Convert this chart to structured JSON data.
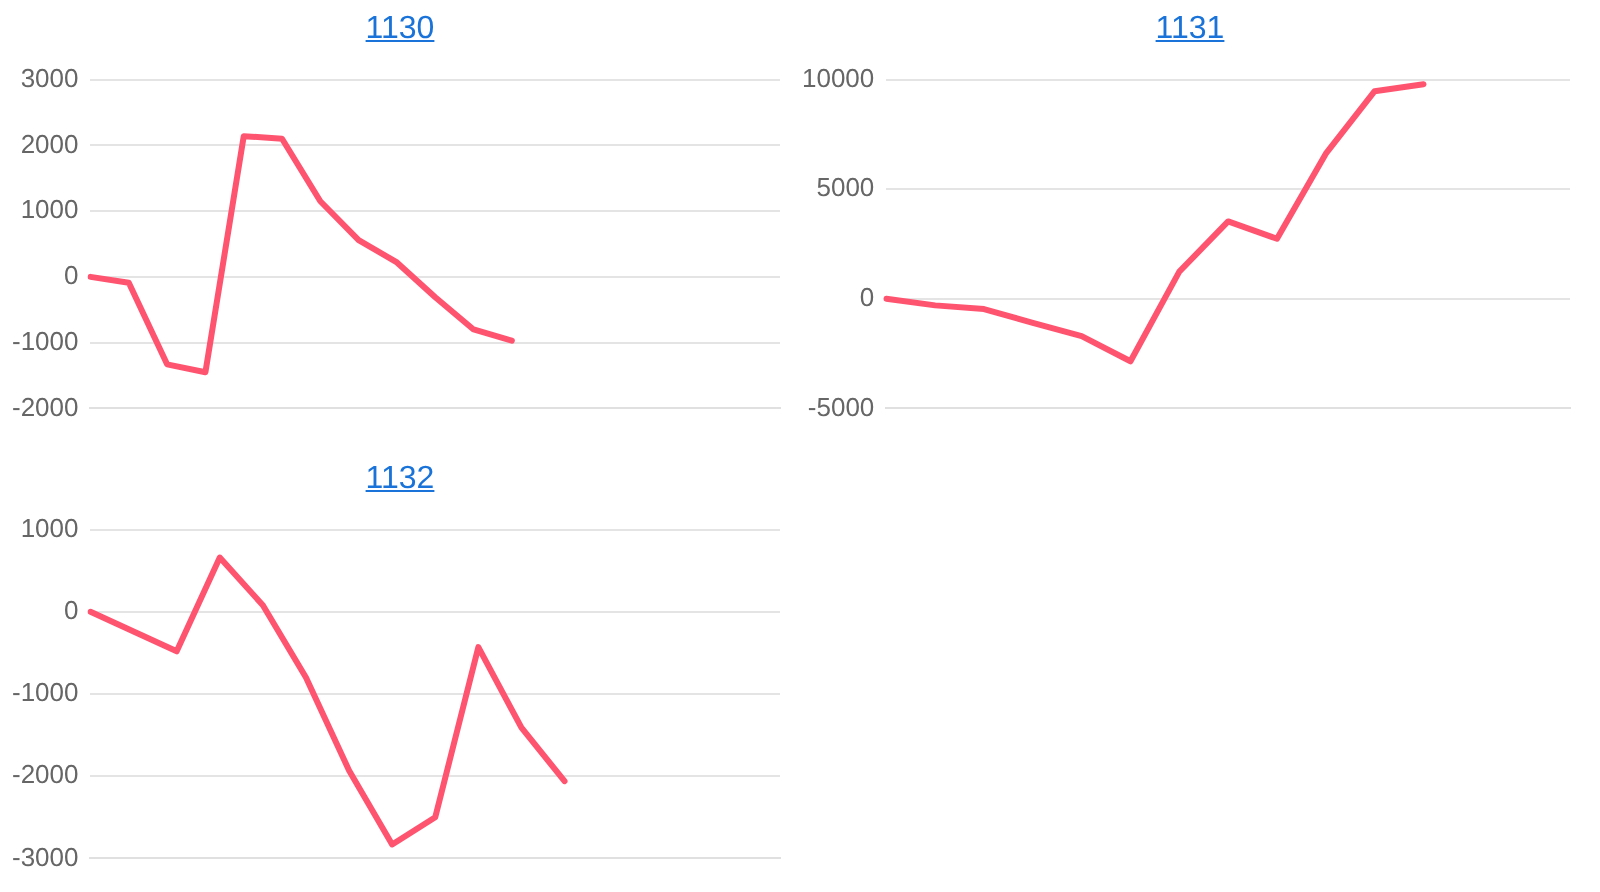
{
  "chart_data": [
    {
      "type": "line",
      "title": "1130",
      "categories": [
        null,
        null,
        null,
        null,
        null,
        null,
        null,
        null,
        null,
        null,
        null,
        null,
        null,
        null,
        null,
        null,
        null,
        null,
        null
      ],
      "series": [
        {
          "color": "#ff5470",
          "values": [
            0,
            -90,
            -1330,
            -1450,
            2140,
            2100,
            1150,
            560,
            220,
            -310,
            -800,
            -970,
            null,
            null,
            null,
            null,
            null,
            null,
            null
          ]
        }
      ],
      "ylim": [
        -2000,
        3000
      ],
      "yticks": [
        -2000,
        -1000,
        0,
        1000,
        2000,
        3000
      ],
      "grid": "y",
      "tick_labels": "y",
      "marker": "none",
      "line_style": "solid",
      "legend": false
    },
    {
      "type": "line",
      "title": "1131",
      "categories": [
        null,
        null,
        null,
        null,
        null,
        null,
        null,
        null,
        null,
        null,
        null,
        null,
        null,
        null,
        null
      ],
      "series": [
        {
          "color": "#ff5470",
          "values": [
            0,
            -300,
            -470,
            -1100,
            -1700,
            -2850,
            1240,
            3530,
            2740,
            6620,
            9470,
            9790,
            null,
            null,
            null
          ]
        }
      ],
      "ylim": [
        -5000,
        10000
      ],
      "yticks": [
        -5000,
        0,
        5000,
        10000
      ],
      "grid": "y",
      "tick_labels": "y",
      "marker": "none",
      "line_style": "solid",
      "legend": false
    },
    {
      "type": "line",
      "title": "1132",
      "categories": [
        null,
        null,
        null,
        null,
        null,
        null,
        null,
        null,
        null,
        null,
        null,
        null,
        null,
        null,
        null,
        null,
        null
      ],
      "series": [
        {
          "color": "#ff5470",
          "values": [
            0,
            -240,
            -480,
            660,
            80,
            -800,
            -1930,
            -2830,
            -2500,
            -430,
            -1410,
            -2060,
            null,
            null,
            null,
            null,
            null
          ]
        }
      ],
      "ylim": [
        -3000,
        1000
      ],
      "yticks": [
        -3000,
        -2000,
        -1000,
        0,
        1000
      ],
      "grid": "y",
      "tick_labels": "y",
      "marker": "none",
      "line_style": "solid",
      "legend": false
    }
  ]
}
